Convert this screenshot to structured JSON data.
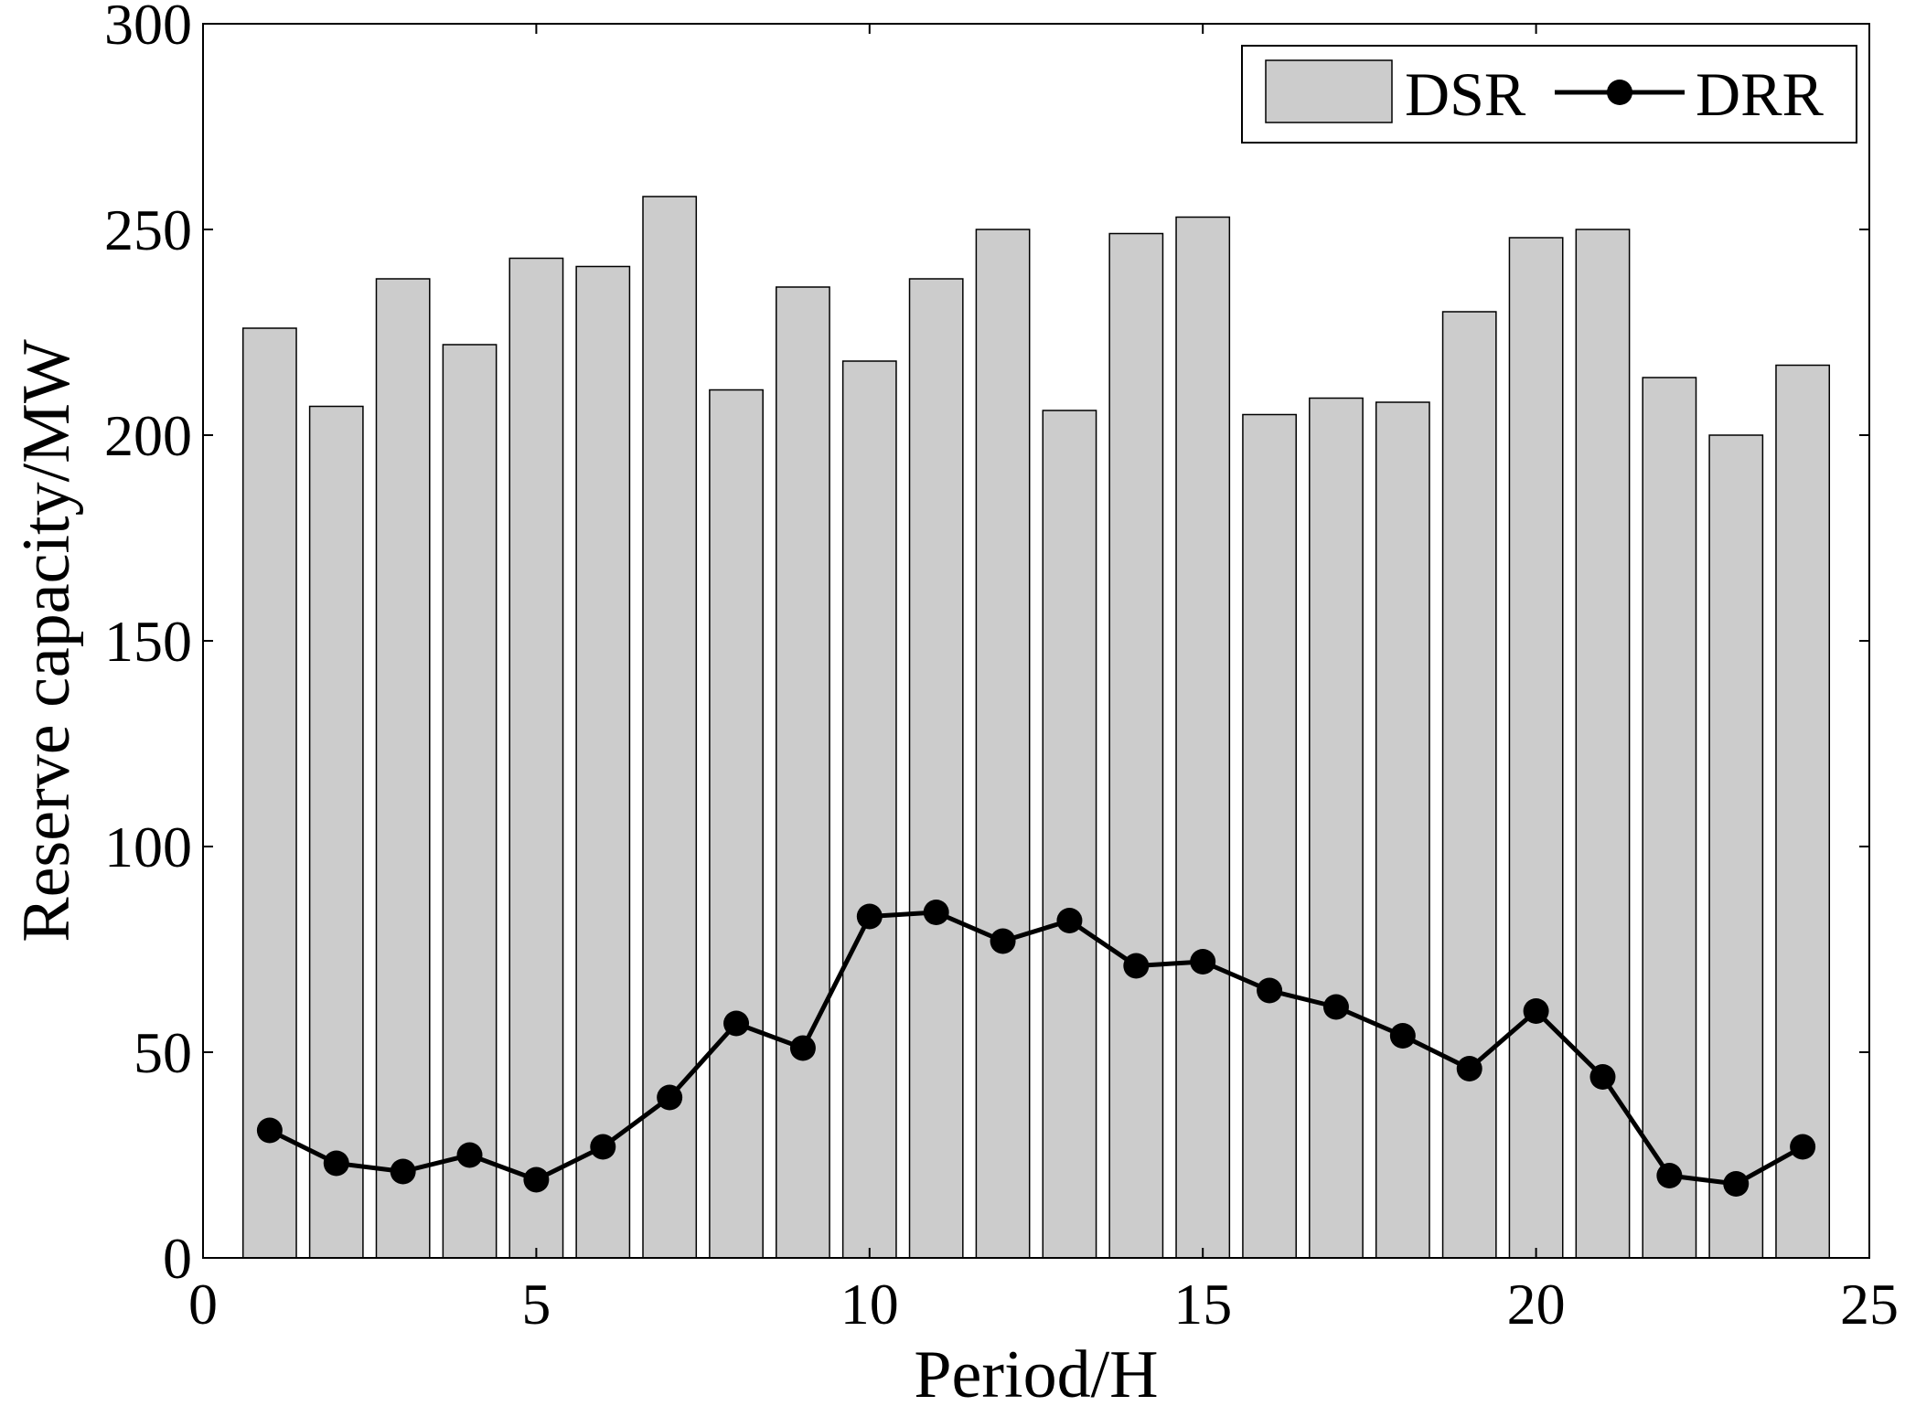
{
  "chart_data": {
    "type": "bar",
    "title": "",
    "xlabel": "Period/H",
    "ylabel": "Reserve capacity/MW",
    "xlim": [
      0,
      25
    ],
    "ylim": [
      0,
      300
    ],
    "xticks": [
      0,
      5,
      10,
      15,
      20,
      25
    ],
    "yticks": [
      0,
      50,
      100,
      150,
      200,
      250,
      300
    ],
    "grid": false,
    "legend": "top-right",
    "colors": {
      "bar": "#cccccc",
      "line": "#000000"
    },
    "x": [
      1,
      2,
      3,
      4,
      5,
      6,
      7,
      8,
      9,
      10,
      11,
      12,
      13,
      14,
      15,
      16,
      17,
      18,
      19,
      20,
      21,
      22,
      23,
      24
    ],
    "series": [
      {
        "name": "DSR",
        "type": "bar",
        "values": [
          226,
          207,
          238,
          222,
          243,
          241,
          258,
          211,
          236,
          218,
          238,
          250,
          206,
          249,
          253,
          205,
          209,
          208,
          230,
          248,
          250,
          214,
          200,
          217
        ]
      },
      {
        "name": "DRR",
        "type": "line",
        "marker": "circle",
        "values": [
          31,
          23,
          21,
          25,
          19,
          27,
          39,
          57,
          51,
          83,
          84,
          77,
          82,
          71,
          72,
          65,
          61,
          54,
          46,
          60,
          44,
          20,
          18,
          27
        ]
      }
    ]
  }
}
